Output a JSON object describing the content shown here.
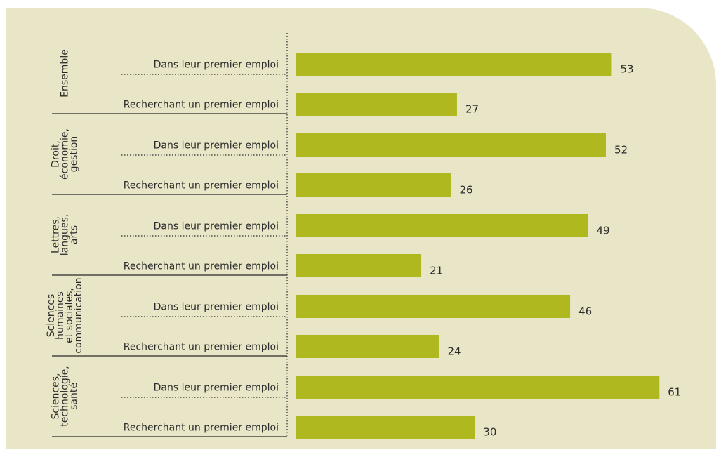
{
  "colors": {
    "background": "#e9e6c8",
    "bar": "#afb81f",
    "text": "#2b2b2b",
    "rule": "#2b2b2b"
  },
  "chart_data": {
    "type": "bar",
    "orientation": "horizontal",
    "title": "",
    "xlabel": "",
    "ylabel": "",
    "xlim": [
      0,
      61
    ],
    "groups": [
      {
        "label": "Ensemble",
        "label_lines": [
          "Ensemble"
        ],
        "bars": [
          {
            "category": "Dans leur premier emploi",
            "value": 53
          },
          {
            "category": "Recherchant un premier emploi",
            "value": 27
          }
        ]
      },
      {
        "label": "Droit, économie, gestion",
        "label_lines": [
          "Droit,",
          "économie,",
          "gestion"
        ],
        "bars": [
          {
            "category": "Dans leur premier emploi",
            "value": 52
          },
          {
            "category": "Recherchant un premier emploi",
            "value": 26
          }
        ]
      },
      {
        "label": "Lettres, langues, arts",
        "label_lines": [
          "Lettres,",
          "langues,",
          "arts"
        ],
        "bars": [
          {
            "category": "Dans leur premier emploi",
            "value": 49
          },
          {
            "category": "Recherchant un premier emploi",
            "value": 21
          }
        ]
      },
      {
        "label": "Sciences humaines et sociales, communication",
        "label_lines": [
          "Sciences",
          "humaines",
          "et sociales,",
          "communication"
        ],
        "bars": [
          {
            "category": "Dans leur premier emploi",
            "value": 46
          },
          {
            "category": "Recherchant un premier emploi",
            "value": 24
          }
        ]
      },
      {
        "label": "Sciences, technologie, santé",
        "label_lines": [
          "Sciences,",
          "technologie,",
          "santé"
        ],
        "bars": [
          {
            "category": "Dans leur premier emploi",
            "value": 61
          },
          {
            "category": "Recherchant un premier emploi",
            "value": 30
          }
        ]
      }
    ]
  }
}
